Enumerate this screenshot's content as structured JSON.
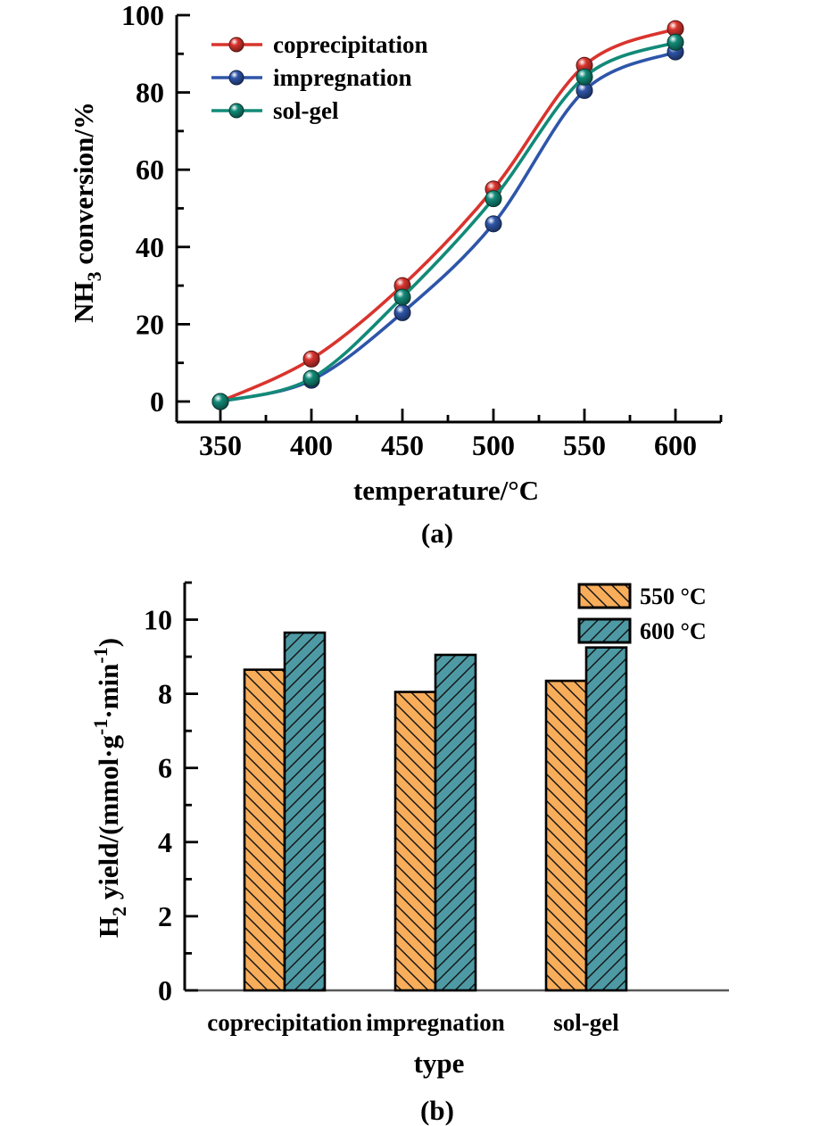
{
  "chart_data": [
    {
      "id": "a",
      "type": "line",
      "panel_label": "(a)",
      "title": "",
      "xlabel": "temperature/°C",
      "ylabel": "NH3 conversion/%",
      "ylabel_segments": [
        {
          "text": "NH"
        },
        {
          "text": "3",
          "script": "sub"
        },
        {
          "text": " conversion/%"
        }
      ],
      "x": [
        350,
        400,
        450,
        500,
        550,
        600
      ],
      "series": [
        {
          "name": "coprecipitation",
          "color": "#d9342e",
          "marker": "sphere",
          "values": [
            0,
            11,
            30,
            55,
            87,
            96.5
          ]
        },
        {
          "name": "impregnation",
          "color": "#2e55a9",
          "marker": "sphere",
          "values": [
            0,
            5.5,
            23,
            46,
            80.5,
            90.5
          ]
        },
        {
          "name": "sol-gel",
          "color": "#128a78",
          "marker": "sphere",
          "values": [
            0,
            6,
            27,
            52.5,
            84,
            93
          ]
        }
      ],
      "xlim": [
        325,
        625
      ],
      "ylim": [
        0,
        100
      ],
      "x_major_ticks": [
        350,
        400,
        450,
        500,
        550,
        600
      ],
      "x_minor_ticks": [
        375,
        425,
        475,
        525,
        575,
        625
      ],
      "y_major_ticks": [
        0,
        20,
        40,
        60,
        80,
        100
      ],
      "y_minor_ticks": [
        10,
        30,
        50,
        70,
        90
      ],
      "grid": false,
      "legend_position": "top-left-inside",
      "curve": "smooth"
    },
    {
      "id": "b",
      "type": "bar",
      "panel_label": "(b)",
      "title": "",
      "xlabel": "type",
      "ylabel": "H2 yield/(mmol·g-1·min-1)",
      "ylabel_segments": [
        {
          "text": "H"
        },
        {
          "text": "2",
          "script": "sub"
        },
        {
          "text": " yield/(mmol·g"
        },
        {
          "text": "-1",
          "script": "sup"
        },
        {
          "text": "·min"
        },
        {
          "text": "-1",
          "script": "sup"
        },
        {
          "text": ")"
        }
      ],
      "categories": [
        "coprecipitation",
        "impregnation",
        "sol-gel"
      ],
      "series": [
        {
          "name": "550 °C",
          "color": "#f8ad5b",
          "hatch": "\\",
          "values": [
            8.65,
            8.05,
            8.35
          ]
        },
        {
          "name": "600 °C",
          "color": "#4d9aa5",
          "hatch": "/",
          "values": [
            9.65,
            9.05,
            9.25
          ]
        }
      ],
      "ylim": [
        0,
        11
      ],
      "y_major_ticks": [
        0,
        2,
        4,
        6,
        8,
        10
      ],
      "y_minor_ticks": [
        1,
        3,
        5,
        7,
        9,
        11
      ],
      "grid": false,
      "legend_position": "top-right-inside",
      "bar_outline_color": "#000000",
      "baseline_color": "#595959"
    }
  ]
}
